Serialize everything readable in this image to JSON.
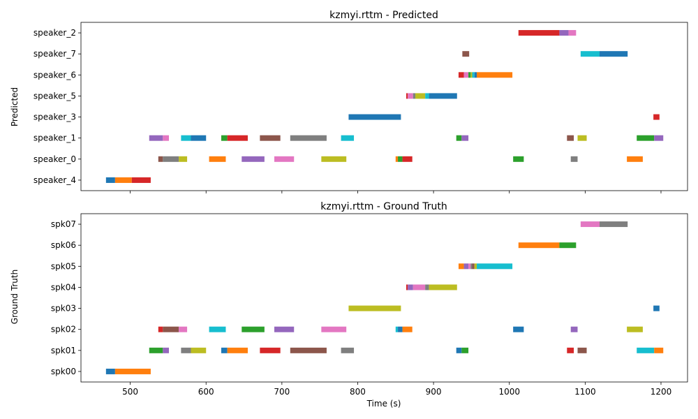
{
  "chart_data": [
    {
      "type": "bar",
      "title": "kzmyi.rttm - Predicted",
      "ylabel": "Predicted",
      "xlabel": "",
      "xlim": [
        435,
        1235
      ],
      "xticks": [
        500,
        600,
        700,
        800,
        900,
        1000,
        1100,
        1200
      ],
      "categories": [
        "speaker_4",
        "speaker_0",
        "speaker_1",
        "speaker_3",
        "speaker_5",
        "speaker_6",
        "speaker_7",
        "speaker_2"
      ],
      "segments": [
        {
          "row": "speaker_4",
          "start": 468,
          "end": 480,
          "color": "#1f77b4"
        },
        {
          "row": "speaker_4",
          "start": 480,
          "end": 502,
          "color": "#ff7f0e"
        },
        {
          "row": "speaker_4",
          "start": 502,
          "end": 527,
          "color": "#d62728"
        },
        {
          "row": "speaker_0",
          "start": 537,
          "end": 543,
          "color": "#8c564b"
        },
        {
          "row": "speaker_0",
          "start": 543,
          "end": 564,
          "color": "#7f7f7f"
        },
        {
          "row": "speaker_0",
          "start": 564,
          "end": 575,
          "color": "#bcbd22"
        },
        {
          "row": "speaker_0",
          "start": 604,
          "end": 626,
          "color": "#ff7f0e"
        },
        {
          "row": "speaker_0",
          "start": 647,
          "end": 677,
          "color": "#9467bd"
        },
        {
          "row": "speaker_0",
          "start": 690,
          "end": 716,
          "color": "#e377c2"
        },
        {
          "row": "speaker_0",
          "start": 752,
          "end": 785,
          "color": "#bcbd22"
        },
        {
          "row": "speaker_0",
          "start": 850,
          "end": 853,
          "color": "#ff7f0e"
        },
        {
          "row": "speaker_0",
          "start": 853,
          "end": 859,
          "color": "#2ca02c"
        },
        {
          "row": "speaker_0",
          "start": 859,
          "end": 872,
          "color": "#d62728"
        },
        {
          "row": "speaker_0",
          "start": 1005,
          "end": 1019,
          "color": "#2ca02c"
        },
        {
          "row": "speaker_0",
          "start": 1081,
          "end": 1090,
          "color": "#7f7f7f"
        },
        {
          "row": "speaker_0",
          "start": 1155,
          "end": 1176,
          "color": "#ff7f0e"
        },
        {
          "row": "speaker_1",
          "start": 525,
          "end": 543,
          "color": "#9467bd"
        },
        {
          "row": "speaker_1",
          "start": 543,
          "end": 551,
          "color": "#e377c2"
        },
        {
          "row": "speaker_1",
          "start": 567,
          "end": 580,
          "color": "#17becf"
        },
        {
          "row": "speaker_1",
          "start": 580,
          "end": 600,
          "color": "#1f77b4"
        },
        {
          "row": "speaker_1",
          "start": 620,
          "end": 628,
          "color": "#2ca02c"
        },
        {
          "row": "speaker_1",
          "start": 628,
          "end": 655,
          "color": "#d62728"
        },
        {
          "row": "speaker_1",
          "start": 671,
          "end": 698,
          "color": "#8c564b"
        },
        {
          "row": "speaker_1",
          "start": 711,
          "end": 759,
          "color": "#7f7f7f"
        },
        {
          "row": "speaker_1",
          "start": 778,
          "end": 795,
          "color": "#17becf"
        },
        {
          "row": "speaker_1",
          "start": 930,
          "end": 937,
          "color": "#2ca02c"
        },
        {
          "row": "speaker_1",
          "start": 937,
          "end": 946,
          "color": "#9467bd"
        },
        {
          "row": "speaker_1",
          "start": 1076,
          "end": 1085,
          "color": "#8c564b"
        },
        {
          "row": "speaker_1",
          "start": 1090,
          "end": 1102,
          "color": "#bcbd22"
        },
        {
          "row": "speaker_1",
          "start": 1168,
          "end": 1191,
          "color": "#2ca02c"
        },
        {
          "row": "speaker_1",
          "start": 1191,
          "end": 1203,
          "color": "#9467bd"
        },
        {
          "row": "speaker_3",
          "start": 788,
          "end": 857,
          "color": "#1f77b4"
        },
        {
          "row": "speaker_3",
          "start": 1190,
          "end": 1198,
          "color": "#d62728"
        },
        {
          "row": "speaker_5",
          "start": 864,
          "end": 866,
          "color": "#d62728"
        },
        {
          "row": "speaker_5",
          "start": 866,
          "end": 873,
          "color": "#e377c2"
        },
        {
          "row": "speaker_5",
          "start": 873,
          "end": 876,
          "color": "#7f7f7f"
        },
        {
          "row": "speaker_5",
          "start": 876,
          "end": 889,
          "color": "#bcbd22"
        },
        {
          "row": "speaker_5",
          "start": 889,
          "end": 894,
          "color": "#17becf"
        },
        {
          "row": "speaker_5",
          "start": 894,
          "end": 931,
          "color": "#1f77b4"
        },
        {
          "row": "speaker_6",
          "start": 933,
          "end": 940,
          "color": "#d62728"
        },
        {
          "row": "speaker_6",
          "start": 940,
          "end": 946,
          "color": "#e377c2"
        },
        {
          "row": "speaker_6",
          "start": 946,
          "end": 949,
          "color": "#2ca02c"
        },
        {
          "row": "speaker_6",
          "start": 949,
          "end": 951,
          "color": "#bcbd22"
        },
        {
          "row": "speaker_6",
          "start": 951,
          "end": 954,
          "color": "#17becf"
        },
        {
          "row": "speaker_6",
          "start": 954,
          "end": 957,
          "color": "#1f77b4"
        },
        {
          "row": "speaker_6",
          "start": 957,
          "end": 1004,
          "color": "#ff7f0e"
        },
        {
          "row": "speaker_7",
          "start": 938,
          "end": 947,
          "color": "#8c564b"
        },
        {
          "row": "speaker_7",
          "start": 1094,
          "end": 1119,
          "color": "#17becf"
        },
        {
          "row": "speaker_7",
          "start": 1119,
          "end": 1156,
          "color": "#1f77b4"
        },
        {
          "row": "speaker_2",
          "start": 1012,
          "end": 1066,
          "color": "#d62728"
        },
        {
          "row": "speaker_2",
          "start": 1066,
          "end": 1078,
          "color": "#9467bd"
        },
        {
          "row": "speaker_2",
          "start": 1078,
          "end": 1088,
          "color": "#e377c2"
        }
      ]
    },
    {
      "type": "bar",
      "title": "kzmyi.rttm - Ground Truth",
      "ylabel": "Ground Truth",
      "xlabel": "Time (s)",
      "xlim": [
        435,
        1235
      ],
      "xticks": [
        500,
        600,
        700,
        800,
        900,
        1000,
        1100,
        1200
      ],
      "categories": [
        "spk00",
        "spk01",
        "spk02",
        "spk03",
        "spk04",
        "spk05",
        "spk06",
        "spk07"
      ],
      "segments": [
        {
          "row": "spk00",
          "start": 468,
          "end": 480,
          "color": "#1f77b4"
        },
        {
          "row": "spk00",
          "start": 480,
          "end": 527,
          "color": "#ff7f0e"
        },
        {
          "row": "spk01",
          "start": 525,
          "end": 543,
          "color": "#2ca02c"
        },
        {
          "row": "spk01",
          "start": 543,
          "end": 551,
          "color": "#9467bd"
        },
        {
          "row": "spk01",
          "start": 567,
          "end": 580,
          "color": "#7f7f7f"
        },
        {
          "row": "spk01",
          "start": 580,
          "end": 600,
          "color": "#bcbd22"
        },
        {
          "row": "spk01",
          "start": 620,
          "end": 628,
          "color": "#1f77b4"
        },
        {
          "row": "spk01",
          "start": 628,
          "end": 655,
          "color": "#ff7f0e"
        },
        {
          "row": "spk01",
          "start": 671,
          "end": 698,
          "color": "#d62728"
        },
        {
          "row": "spk01",
          "start": 711,
          "end": 759,
          "color": "#8c564b"
        },
        {
          "row": "spk01",
          "start": 778,
          "end": 795,
          "color": "#7f7f7f"
        },
        {
          "row": "spk01",
          "start": 930,
          "end": 937,
          "color": "#1f77b4"
        },
        {
          "row": "spk01",
          "start": 937,
          "end": 946,
          "color": "#2ca02c"
        },
        {
          "row": "spk01",
          "start": 1076,
          "end": 1085,
          "color": "#d62728"
        },
        {
          "row": "spk01",
          "start": 1090,
          "end": 1102,
          "color": "#8c564b"
        },
        {
          "row": "spk01",
          "start": 1168,
          "end": 1191,
          "color": "#17becf"
        },
        {
          "row": "spk01",
          "start": 1191,
          "end": 1203,
          "color": "#ff7f0e"
        },
        {
          "row": "spk02",
          "start": 537,
          "end": 543,
          "color": "#d62728"
        },
        {
          "row": "spk02",
          "start": 543,
          "end": 564,
          "color": "#8c564b"
        },
        {
          "row": "spk02",
          "start": 564,
          "end": 575,
          "color": "#e377c2"
        },
        {
          "row": "spk02",
          "start": 604,
          "end": 626,
          "color": "#17becf"
        },
        {
          "row": "spk02",
          "start": 647,
          "end": 677,
          "color": "#2ca02c"
        },
        {
          "row": "spk02",
          "start": 690,
          "end": 716,
          "color": "#9467bd"
        },
        {
          "row": "spk02",
          "start": 752,
          "end": 785,
          "color": "#e377c2"
        },
        {
          "row": "spk02",
          "start": 850,
          "end": 853,
          "color": "#17becf"
        },
        {
          "row": "spk02",
          "start": 853,
          "end": 859,
          "color": "#1f77b4"
        },
        {
          "row": "spk02",
          "start": 859,
          "end": 872,
          "color": "#ff7f0e"
        },
        {
          "row": "spk02",
          "start": 1005,
          "end": 1019,
          "color": "#1f77b4"
        },
        {
          "row": "spk02",
          "start": 1081,
          "end": 1090,
          "color": "#9467bd"
        },
        {
          "row": "spk02",
          "start": 1155,
          "end": 1176,
          "color": "#bcbd22"
        },
        {
          "row": "spk03",
          "start": 788,
          "end": 857,
          "color": "#bcbd22"
        },
        {
          "row": "spk03",
          "start": 1190,
          "end": 1198,
          "color": "#1f77b4"
        },
        {
          "row": "spk04",
          "start": 864,
          "end": 866,
          "color": "#d62728"
        },
        {
          "row": "spk04",
          "start": 866,
          "end": 873,
          "color": "#9467bd"
        },
        {
          "row": "spk04",
          "start": 873,
          "end": 889,
          "color": "#e377c2"
        },
        {
          "row": "spk04",
          "start": 889,
          "end": 894,
          "color": "#7f7f7f"
        },
        {
          "row": "spk04",
          "start": 894,
          "end": 931,
          "color": "#bcbd22"
        },
        {
          "row": "spk05",
          "start": 933,
          "end": 940,
          "color": "#ff7f0e"
        },
        {
          "row": "spk05",
          "start": 940,
          "end": 946,
          "color": "#9467bd"
        },
        {
          "row": "spk05",
          "start": 946,
          "end": 949,
          "color": "#e377c2"
        },
        {
          "row": "spk05",
          "start": 949,
          "end": 951,
          "color": "#7f7f7f"
        },
        {
          "row": "spk05",
          "start": 951,
          "end": 954,
          "color": "#8c564b"
        },
        {
          "row": "spk05",
          "start": 954,
          "end": 957,
          "color": "#bcbd22"
        },
        {
          "row": "spk05",
          "start": 957,
          "end": 1004,
          "color": "#17becf"
        },
        {
          "row": "spk06",
          "start": 1012,
          "end": 1066,
          "color": "#ff7f0e"
        },
        {
          "row": "spk06",
          "start": 1066,
          "end": 1088,
          "color": "#2ca02c"
        },
        {
          "row": "spk07",
          "start": 1094,
          "end": 1119,
          "color": "#e377c2"
        },
        {
          "row": "spk07",
          "start": 1119,
          "end": 1156,
          "color": "#7f7f7f"
        }
      ]
    }
  ]
}
